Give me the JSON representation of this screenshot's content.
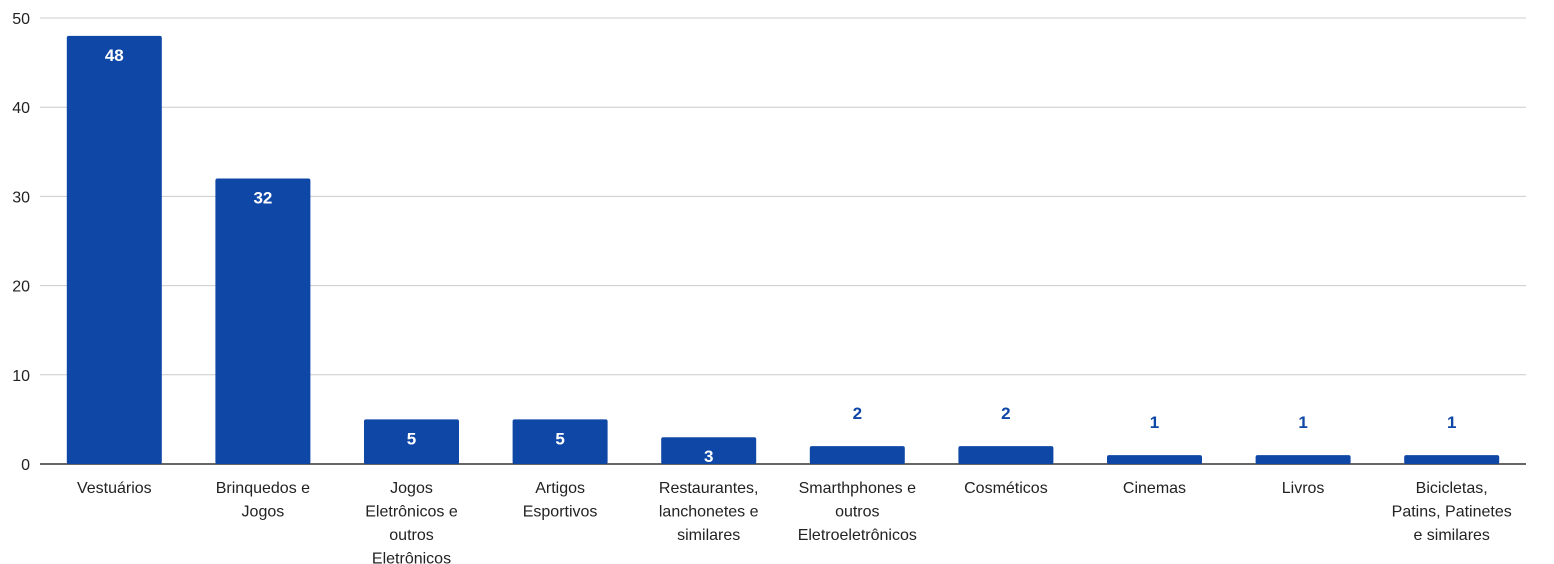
{
  "chart_data": {
    "type": "bar",
    "title": "",
    "xlabel": "",
    "ylabel": "",
    "ylim": [
      0,
      50
    ],
    "yticks": [
      0,
      10,
      20,
      30,
      40,
      50
    ],
    "grid": true,
    "legend": "none",
    "colors": {
      "bar": "#0f47a6",
      "label_inside": "#ffffff",
      "label_outside": "#0f47a6",
      "grid": "#cccccc",
      "axis": "#333333"
    },
    "categories": [
      [
        "Vestuários"
      ],
      [
        "Brinquedos e",
        "Jogos"
      ],
      [
        "Jogos",
        "Eletrônicos e",
        "outros",
        "Eletrônicos"
      ],
      [
        "Artigos",
        "Esportivos"
      ],
      [
        "Restaurantes,",
        "lanchonetes e",
        "similares"
      ],
      [
        "Smarthphones e",
        "outros",
        "Eletroeletrônicos"
      ],
      [
        "Cosméticos"
      ],
      [
        "Cinemas"
      ],
      [
        "Livros"
      ],
      [
        "Bicicletas,",
        "Patins, Patinetes",
        "e similares"
      ]
    ],
    "values": [
      48,
      32,
      5,
      5,
      3,
      2,
      2,
      1,
      1,
      1
    ]
  }
}
